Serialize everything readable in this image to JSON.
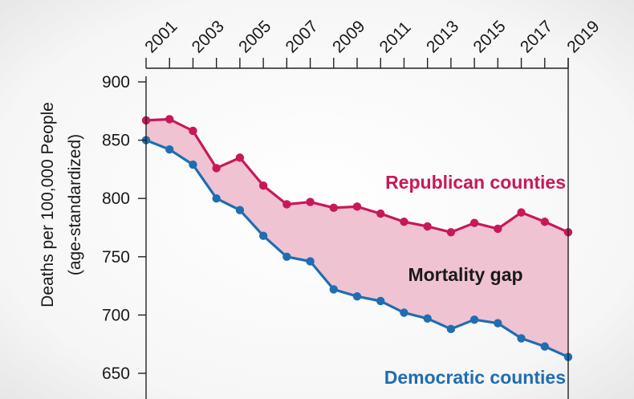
{
  "chart_data": {
    "type": "line",
    "title": "",
    "xlabel": "",
    "ylabel": "Deaths per 100,000 People",
    "ylabel_sub": "(age-standardized)",
    "x": [
      2001,
      2002,
      2003,
      2004,
      2005,
      2006,
      2007,
      2008,
      2009,
      2010,
      2011,
      2012,
      2013,
      2014,
      2015,
      2016,
      2017,
      2018,
      2019
    ],
    "x_tick_labels": [
      "2001",
      "2003",
      "2005",
      "2007",
      "2009",
      "2011",
      "2013",
      "2015",
      "2017",
      "2019"
    ],
    "y_tick_labels": [
      "900",
      "850",
      "800",
      "750",
      "700",
      "650"
    ],
    "y_ticks": [
      900,
      850,
      800,
      750,
      700,
      650
    ],
    "ylim": [
      640,
      900
    ],
    "xlim": [
      2001,
      2019
    ],
    "grid": false,
    "series": [
      {
        "name": "Republican counties",
        "color": "#c8185a",
        "values": [
          867,
          868,
          858,
          826,
          835,
          811,
          795,
          797,
          792,
          793,
          787,
          780,
          776,
          771,
          779,
          774,
          788,
          780,
          771
        ]
      },
      {
        "name": "Democratic counties",
        "color": "#1f6db3",
        "values": [
          850,
          842,
          829,
          800,
          790,
          768,
          750,
          746,
          722,
          716,
          712,
          702,
          697,
          688,
          696,
          693,
          680,
          673,
          664
        ]
      }
    ],
    "gap_label": "Mortality gap",
    "gap_fill": "#efc3d2"
  }
}
